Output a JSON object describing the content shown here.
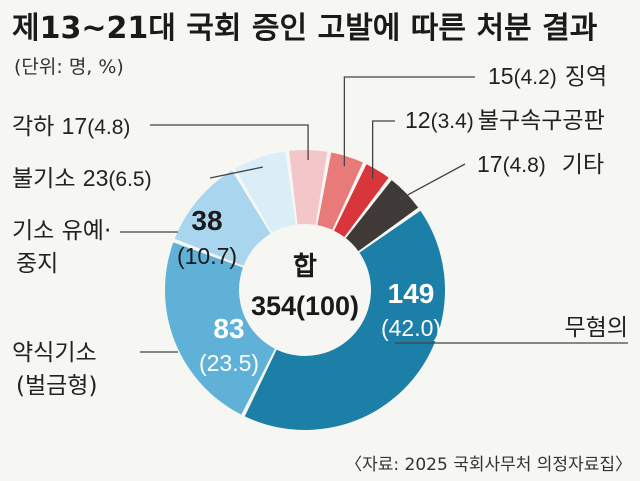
{
  "chart_data": {
    "type": "pie",
    "title": "제13~21대 국회 증인 고발에 따른 처분 결과",
    "unit_note": "(단위: 명, %)",
    "center_label": "합",
    "center_value": "354(100)",
    "source": "〈자료: 2025 국회사무처 의정자료집〉",
    "slices": [
      {
        "label": "징역",
        "value": 15,
        "percent": 4.2,
        "color": "#e97a7a"
      },
      {
        "label": "불구속구공판",
        "value": 12,
        "percent": 3.4,
        "color": "#d9363b"
      },
      {
        "label": "기타",
        "value": 17,
        "percent": 4.8,
        "color": "#3f3a37"
      },
      {
        "label": "무혐의",
        "value": 149,
        "percent": 42.0,
        "color": "#1c7fa8"
      },
      {
        "label": "약식기소\n(벌금형)",
        "value": 83,
        "percent": 23.5,
        "color": "#5fb1d8"
      },
      {
        "label": "기소 유예·\n중지",
        "value": 38,
        "percent": 10.7,
        "color": "#a9d6ee"
      },
      {
        "label": "불기소",
        "value": 23,
        "percent": 6.5,
        "color": "#daeef8"
      },
      {
        "label": "각하",
        "value": 17,
        "percent": 4.8,
        "color": "#f3c7c9"
      }
    ]
  }
}
